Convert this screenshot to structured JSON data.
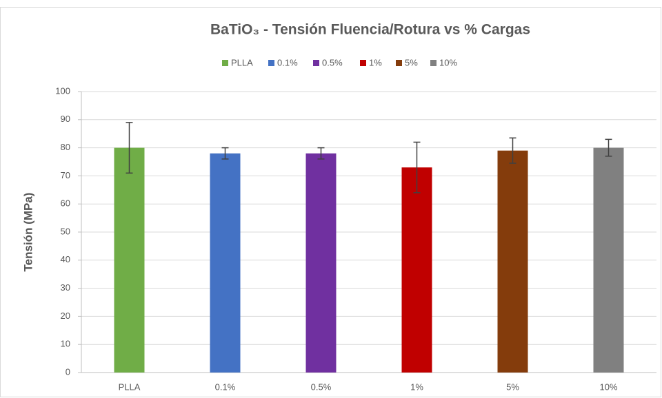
{
  "chart_data": {
    "type": "bar",
    "title": "BaTiO₃ - Tensión Fluencia/Rotura vs % Cargas",
    "y_label": "Tensión (MPa)",
    "categories": [
      "PLLA",
      "0.1%",
      "0.5%",
      "1%",
      "5%",
      "10%"
    ],
    "values": [
      80,
      78,
      78,
      73,
      79,
      80
    ],
    "errors": [
      9,
      2,
      2,
      9,
      4.5,
      3
    ],
    "colors": [
      "#70ad47",
      "#4472c4",
      "#7030a0",
      "#c00000",
      "#843c0c",
      "#808080"
    ],
    "ylim": [
      0,
      100
    ],
    "yticks": [
      0,
      10,
      20,
      30,
      40,
      50,
      60,
      70,
      80,
      90,
      100
    ],
    "grid": true,
    "legend": "top"
  }
}
